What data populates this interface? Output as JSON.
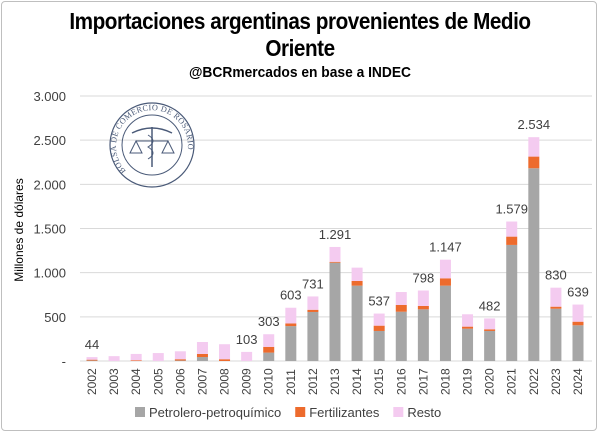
{
  "chart_data": {
    "type": "bar",
    "stacked": true,
    "title": "Importaciones argentinas provenientes de Medio Oriente",
    "title_line1": "Importaciones argentinas provenientes de Medio",
    "title_line2": "Oriente",
    "subtitle": "@BCRmercados en base a INDEC",
    "ylabel": "Millones de dólares",
    "ylim": [
      0,
      3000
    ],
    "yticks": [
      0,
      500,
      1000,
      1500,
      2000,
      2500,
      3000
    ],
    "ytick_labels": [
      "-",
      "500",
      "1.000",
      "1.500",
      "2.000",
      "2.500",
      "3.000"
    ],
    "grid": true,
    "legend": "bottom",
    "categories": [
      "2002",
      "2003",
      "2004",
      "2005",
      "2006",
      "2007",
      "2008",
      "2009",
      "2010",
      "2011",
      "2012",
      "2013",
      "2014",
      "2015",
      "2016",
      "2017",
      "2018",
      "2019",
      "2020",
      "2021",
      "2022",
      "2023",
      "2024"
    ],
    "series": [
      {
        "name": "Petrolero-petroquímico",
        "color": "#a6a6a6",
        "values": [
          5,
          0,
          0,
          0,
          5,
          45,
          0,
          0,
          95,
          395,
          555,
          1113,
          853,
          340,
          558,
          585,
          853,
          366,
          340,
          1314,
          2182,
          592,
          404
        ]
      },
      {
        "name": "Fertilizantes",
        "color": "#ed6b2d",
        "values": [
          10,
          0,
          8,
          0,
          15,
          35,
          20,
          0,
          65,
          30,
          25,
          10,
          53,
          60,
          76,
          38,
          83,
          23,
          19,
          94,
          132,
          23,
          41
        ]
      },
      {
        "name": "Resto",
        "color": "#f4cbf0",
        "values": [
          29,
          55,
          72,
          90,
          90,
          135,
          170,
          103,
          143,
          178,
          151,
          168,
          151,
          137,
          147,
          175,
          211,
          140,
          123,
          171,
          220,
          215,
          194
        ]
      }
    ],
    "data_labels": [
      "44",
      "",
      "",
      "",
      "",
      "",
      "",
      "103",
      "303",
      "603",
      "731",
      "1.291",
      "",
      "537",
      "",
      "798",
      "1.147",
      "",
      "482",
      "1.579",
      "2.534",
      "830",
      "639"
    ]
  },
  "logo": {
    "text": "BOLSA DE COMERCIO DE ROSARIO"
  }
}
